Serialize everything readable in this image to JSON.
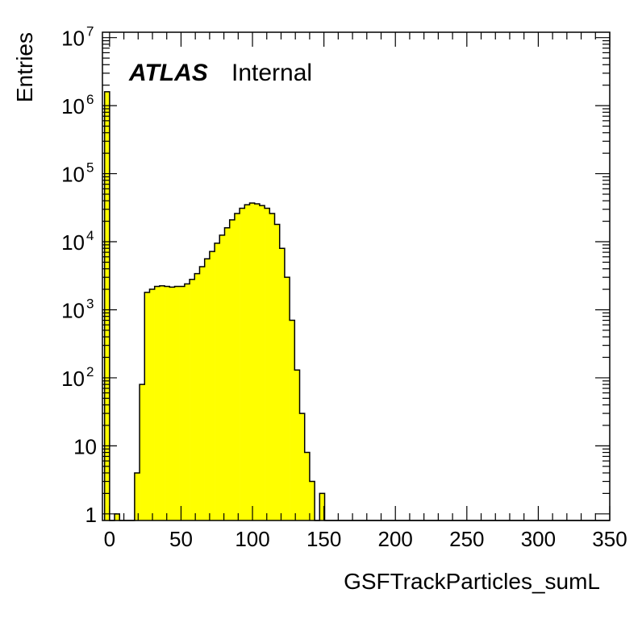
{
  "chart_data": {
    "type": "histogram",
    "title": "",
    "xlabel": "GSFTrackParticles_sumL",
    "ylabel": "Entries",
    "label_bold": "ATLAS",
    "label_status": "Internal",
    "xlim": [
      -5,
      350
    ],
    "ylim": [
      0.8,
      12000000
    ],
    "y_scale": "log",
    "x_ticks": [
      "0",
      "50",
      "100",
      "150",
      "200",
      "250",
      "300",
      "350"
    ],
    "y_ticks": [
      {
        "value": 1,
        "base": "1",
        "exp": ""
      },
      {
        "value": 10,
        "base": "10",
        "exp": ""
      },
      {
        "value": 100,
        "base": "10",
        "exp": "2"
      },
      {
        "value": 1000,
        "base": "10",
        "exp": "3"
      },
      {
        "value": 10000,
        "base": "10",
        "exp": "4"
      },
      {
        "value": 100000,
        "base": "10",
        "exp": "5"
      },
      {
        "value": 1000000,
        "base": "10",
        "exp": "6"
      },
      {
        "value": 10000000,
        "base": "10",
        "exp": "7"
      }
    ],
    "bin_width": 3.5,
    "bin_start": -3.5,
    "counts": [
      1600000,
      0,
      1,
      0,
      0,
      0,
      4,
      80,
      1800,
      2000,
      2200,
      2250,
      2200,
      2150,
      2200,
      2200,
      2400,
      2800,
      3400,
      4300,
      5600,
      7200,
      9500,
      12500,
      16000,
      21000,
      26000,
      31000,
      35000,
      37000,
      36000,
      34000,
      31000,
      26000,
      18000,
      8000,
      3000,
      700,
      130,
      30,
      8,
      3,
      0,
      2,
      0
    ],
    "fill_color": "#ffff00",
    "line_color": "#000000"
  }
}
